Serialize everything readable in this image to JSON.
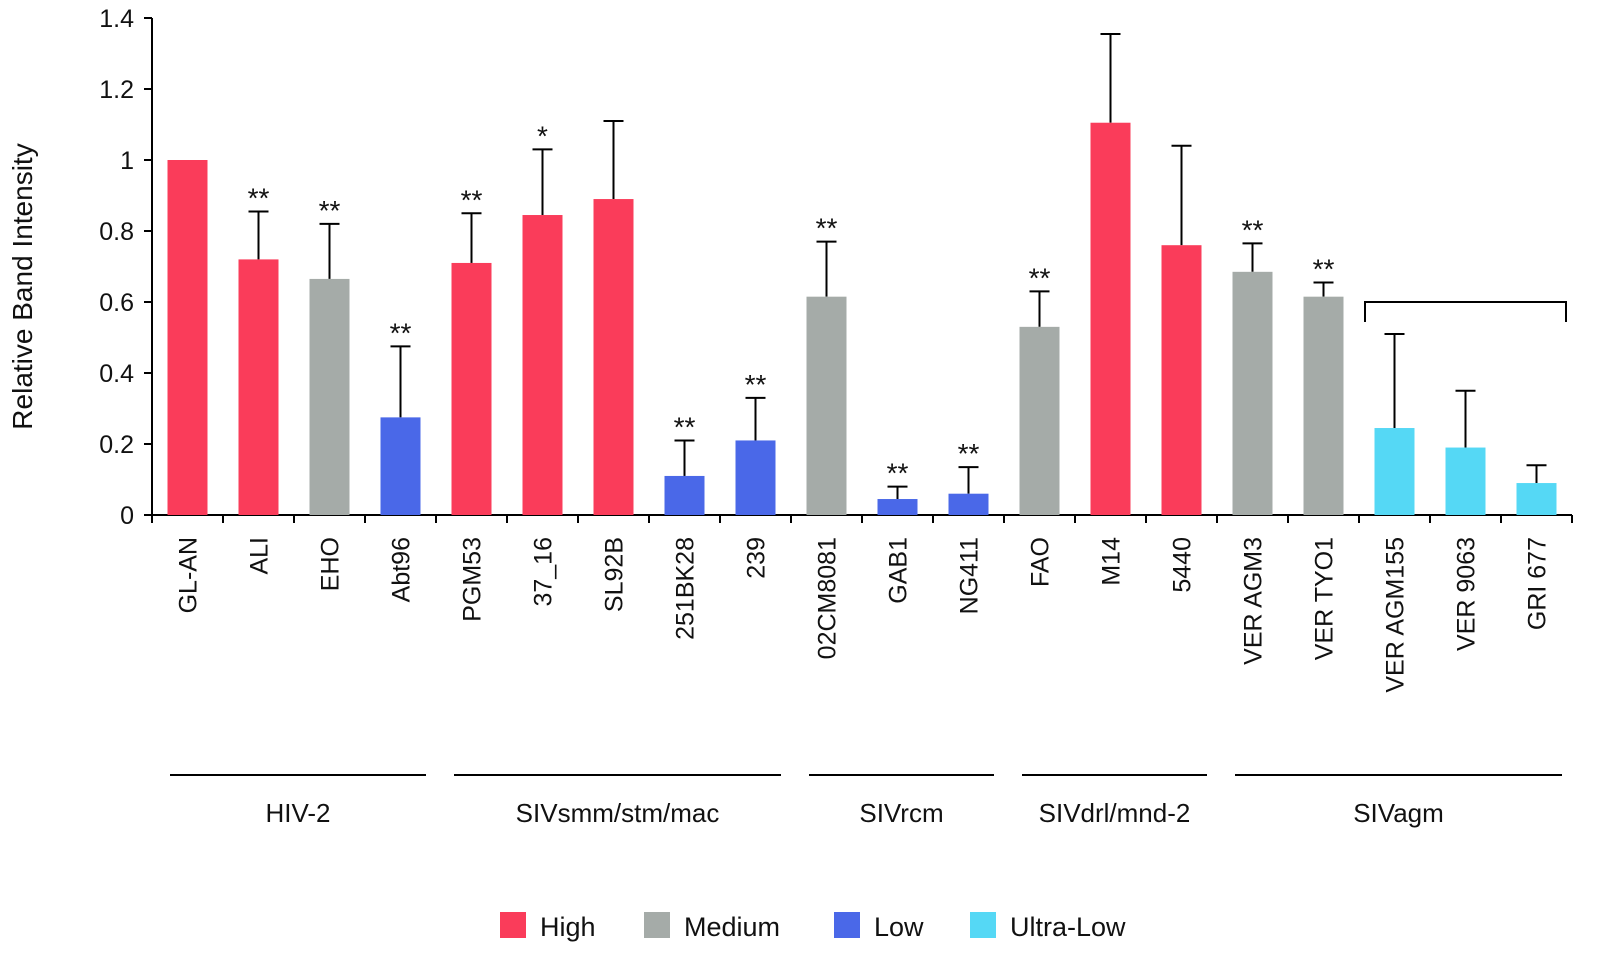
{
  "chart_data": {
    "type": "bar",
    "title": "",
    "xlabel": "",
    "ylabel": "Relative Band Intensity",
    "ylim": [
      0,
      1.4
    ],
    "yticks": [
      "0",
      "0.2",
      "0.4",
      "0.6",
      "0.8",
      "1",
      "1.2",
      "1.4"
    ],
    "grid": false,
    "categories": [
      "GL-AN",
      "ALI",
      "EHO",
      "Abt96",
      "PGM53",
      "37_16",
      "SL92B",
      "251BK28",
      "239",
      "02CM8081",
      "GAB1",
      "NG411",
      "FAO",
      "M14",
      "5440",
      "VER AGM3",
      "VER TYO1",
      "VER AGM155",
      "VER 9063",
      "GRI 677"
    ],
    "values": [
      1.0,
      0.72,
      0.665,
      0.275,
      0.71,
      0.845,
      0.89,
      0.11,
      0.21,
      0.615,
      0.045,
      0.06,
      0.53,
      1.105,
      0.76,
      0.685,
      0.615,
      0.245,
      0.19,
      0.09
    ],
    "errors": [
      0,
      0.135,
      0.155,
      0.2,
      0.14,
      0.185,
      0.22,
      0.1,
      0.12,
      0.155,
      0.035,
      0.075,
      0.1,
      0.25,
      0.28,
      0.08,
      0.04,
      0.265,
      0.16,
      0.05
    ],
    "levels": [
      "High",
      "High",
      "Medium",
      "Low",
      "High",
      "High",
      "High",
      "Low",
      "Low",
      "Medium",
      "Low",
      "Low",
      "Medium",
      "High",
      "High",
      "Medium",
      "Medium",
      "Ultra-Low",
      "Ultra-Low",
      "Ultra-Low"
    ],
    "significance": [
      "",
      "**",
      "**",
      "**",
      "**",
      "*",
      "",
      "**",
      "**",
      "**",
      "**",
      "**",
      "**",
      "",
      "",
      "**",
      "**",
      "",
      "",
      ""
    ],
    "level_colors": {
      "High": "#fa3c5a",
      "Medium": "#a5aba8",
      "Low": "#4a68e8",
      "Ultra-Low": "#55d8f5"
    },
    "groups": [
      {
        "name": "HIV-2",
        "start": 0,
        "end": 3
      },
      {
        "name": "SIVsmm/stm/mac",
        "start": 4,
        "end": 8
      },
      {
        "name": "SIVrcm",
        "start": 9,
        "end": 11
      },
      {
        "name": "SIVdrl/mnd-2",
        "start": 12,
        "end": 14
      },
      {
        "name": "SIVagm",
        "start": 15,
        "end": 19
      }
    ],
    "bracket": {
      "start": 17,
      "end": 19,
      "level": 0.6
    },
    "legend": [
      "High",
      "Medium",
      "Low",
      "Ultra-Low"
    ],
    "legend_position": "bottom"
  }
}
